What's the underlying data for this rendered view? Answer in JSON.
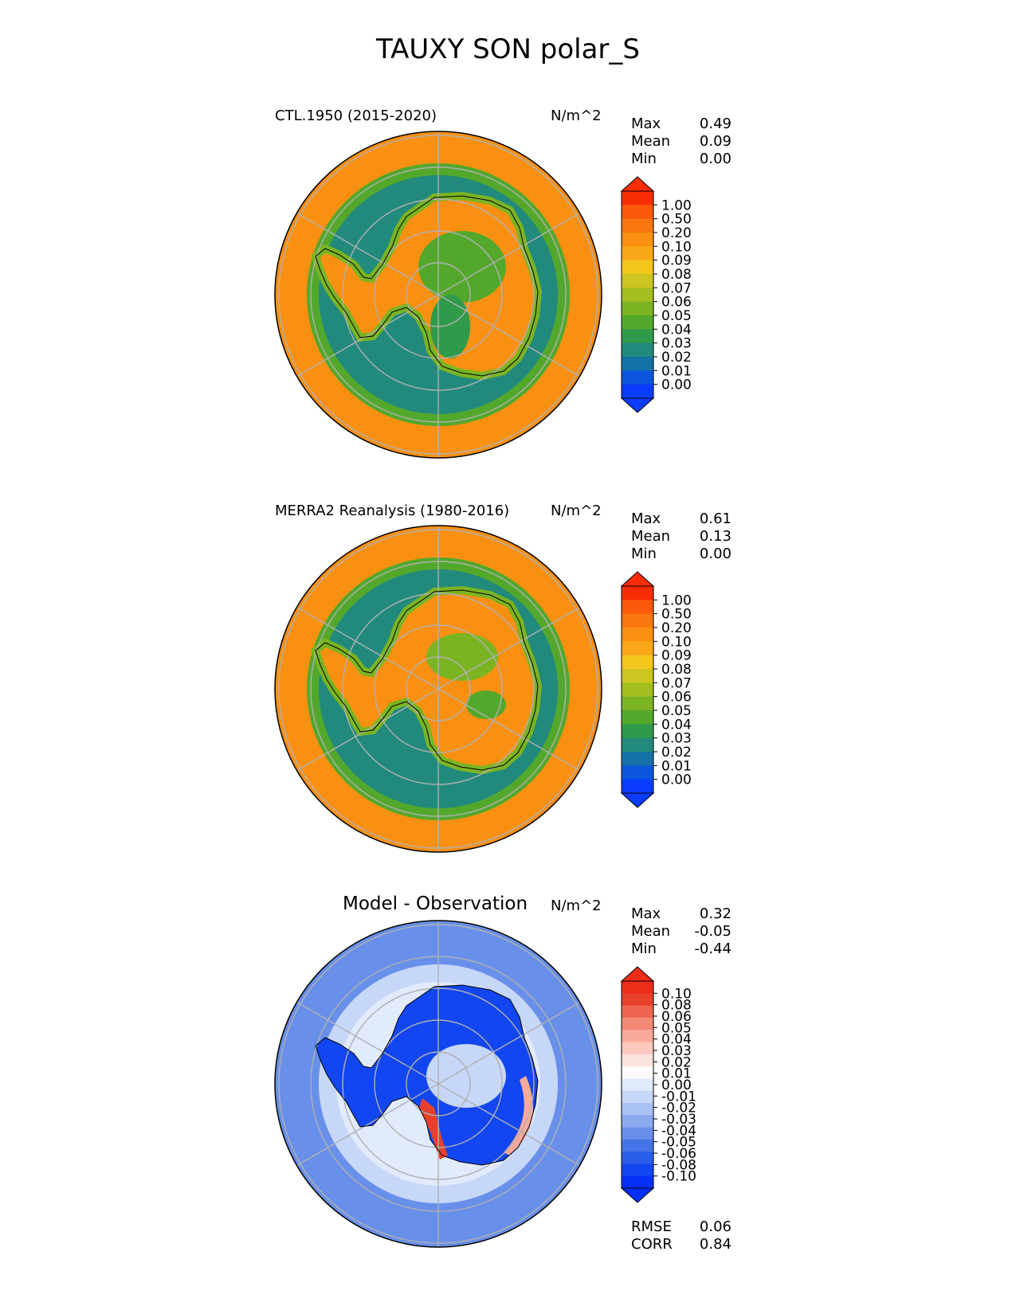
{
  "figure": {
    "title": "TAUXY SON polar_S"
  },
  "colors": {
    "test_levels": [
      "#0a3cff",
      "#0a55dc",
      "#1472a8",
      "#218a7c",
      "#2f9a4a",
      "#53a82c",
      "#7bb422",
      "#a3be1e",
      "#cdc620",
      "#f3c61e",
      "#faa818",
      "#fa9012",
      "#fa760e",
      "#fa5a0a",
      "#f82d05"
    ],
    "diff_levels": [
      "#0530fa",
      "#1246f0",
      "#2a5ee8",
      "#4674e6",
      "#6890ea",
      "#8aabf0",
      "#a9c2f4",
      "#c7d7f8",
      "#e2ebfc",
      "#fbfbfb",
      "#fde3de",
      "#fbc8bd",
      "#f8aa9a",
      "#f48a76",
      "#ee6650",
      "#e9402c",
      "#ee2d18"
    ],
    "coast": "#000000",
    "grid": "#b0b0b0"
  },
  "chart_data": [
    {
      "type": "heatmap",
      "projection": "south-polar-stereographic",
      "title_left": "CTL.1950 (2015-2020)",
      "units": "N/m^2",
      "stats": [
        {
          "label": "Max",
          "value": "0.49"
        },
        {
          "label": "Mean",
          "value": "0.09"
        },
        {
          "label": "Min",
          "value": "0.00"
        }
      ],
      "colorbar_ticks": [
        "1.00",
        "0.50",
        "0.20",
        "0.10",
        "0.09",
        "0.08",
        "0.07",
        "0.06",
        "0.05",
        "0.04",
        "0.03",
        "0.02",
        "0.01",
        "0.00"
      ],
      "extend": "both"
    },
    {
      "type": "heatmap",
      "projection": "south-polar-stereographic",
      "title_left": "MERRA2 Reanalysis (1980-2016)",
      "units": "N/m^2",
      "stats": [
        {
          "label": "Max",
          "value": "0.61"
        },
        {
          "label": "Mean",
          "value": "0.13"
        },
        {
          "label": "Min",
          "value": "0.00"
        }
      ],
      "colorbar_ticks": [
        "1.00",
        "0.50",
        "0.20",
        "0.10",
        "0.09",
        "0.08",
        "0.07",
        "0.06",
        "0.05",
        "0.04",
        "0.03",
        "0.02",
        "0.01",
        "0.00"
      ],
      "extend": "both"
    },
    {
      "type": "heatmap",
      "projection": "south-polar-stereographic",
      "title_center": "Model - Observation",
      "units": "N/m^2",
      "stats": [
        {
          "label": "Max",
          "value": "0.32"
        },
        {
          "label": "Mean",
          "value": "-0.05"
        },
        {
          "label": "Min",
          "value": "-0.44"
        }
      ],
      "colorbar_ticks": [
        "0.10",
        "0.08",
        "0.06",
        "0.05",
        "0.04",
        "0.03",
        "0.02",
        "0.01",
        "0.00",
        "-0.01",
        "-0.02",
        "-0.03",
        "-0.04",
        "-0.05",
        "-0.06",
        "-0.08",
        "-0.10"
      ],
      "extend": "both",
      "metrics": [
        {
          "label": "RMSE",
          "value": "0.06"
        },
        {
          "label": "CORR",
          "value": "0.84"
        }
      ]
    }
  ]
}
